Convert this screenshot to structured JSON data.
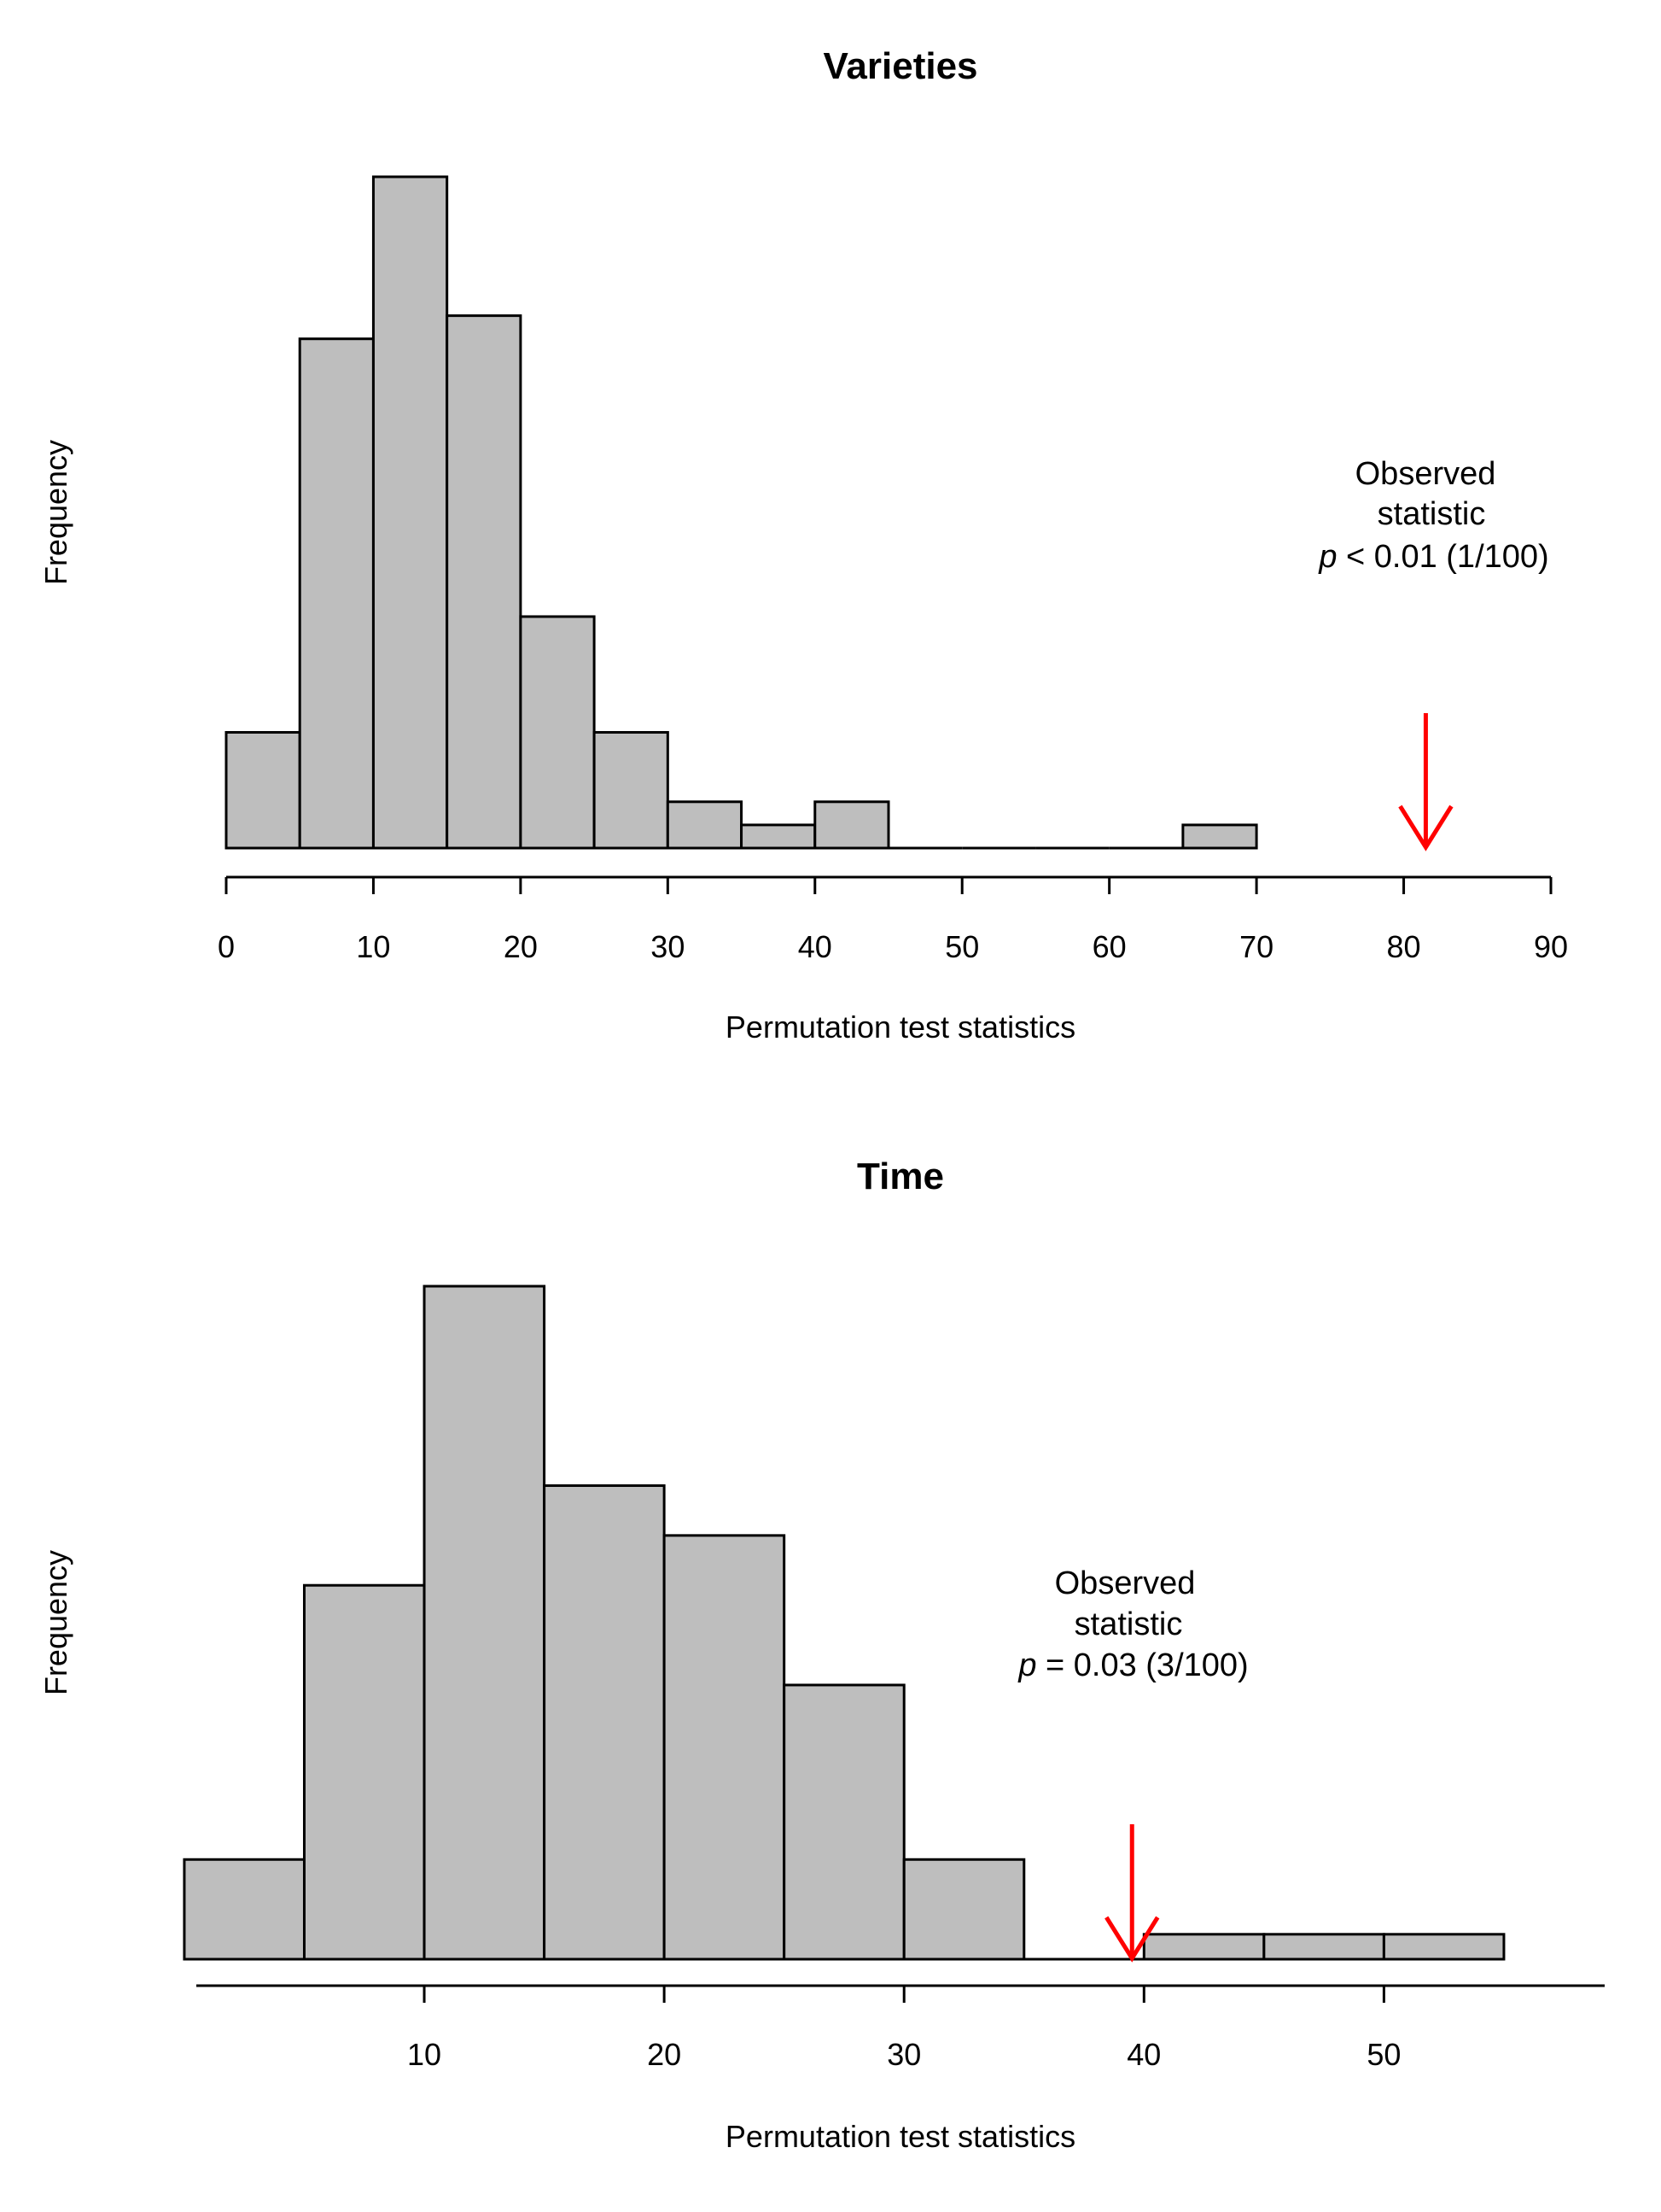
{
  "chart_data": [
    {
      "type": "bar",
      "title": "Varieties",
      "xlabel": "Permutation test statistics",
      "ylabel": "Frequency",
      "bins": [
        {
          "x0": 0,
          "x1": 5,
          "count": 5
        },
        {
          "x0": 5,
          "x1": 10,
          "count": 22
        },
        {
          "x0": 10,
          "x1": 15,
          "count": 29
        },
        {
          "x0": 15,
          "x1": 20,
          "count": 23
        },
        {
          "x0": 20,
          "x1": 25,
          "count": 10
        },
        {
          "x0": 25,
          "x1": 30,
          "count": 5
        },
        {
          "x0": 30,
          "x1": 35,
          "count": 2
        },
        {
          "x0": 35,
          "x1": 40,
          "count": 1
        },
        {
          "x0": 40,
          "x1": 45,
          "count": 2
        },
        {
          "x0": 45,
          "x1": 50,
          "count": 0
        },
        {
          "x0": 50,
          "x1": 55,
          "count": 0
        },
        {
          "x0": 55,
          "x1": 60,
          "count": 0
        },
        {
          "x0": 60,
          "x1": 65,
          "count": 0
        },
        {
          "x0": 65,
          "x1": 70,
          "count": 1
        }
      ],
      "xlim": [
        0,
        90
      ],
      "xticks": [
        "0",
        "10",
        "20",
        "30",
        "40",
        "50",
        "60",
        "70",
        "80",
        "90"
      ],
      "observed_statistic": 81.5,
      "annotation": {
        "line1": "Observed",
        "line2": "statistic",
        "p_symbol": "p",
        "p_text": " < 0.01 (1/100)"
      },
      "colors": {
        "bar_fill": "#bebebe",
        "bar_stroke": "#000000",
        "arrow": "#ff0000"
      }
    },
    {
      "type": "bar",
      "title": "Time",
      "xlabel": "Permutation test statistics",
      "ylabel": "Frequency",
      "bins": [
        {
          "x0": 0,
          "x1": 5,
          "count": 2
        },
        {
          "x0": 5,
          "x1": 10,
          "count": 7.5
        },
        {
          "x0": 10,
          "x1": 15,
          "count": 13.5
        },
        {
          "x0": 15,
          "x1": 20,
          "count": 9.5
        },
        {
          "x0": 20,
          "x1": 25,
          "count": 8.5
        },
        {
          "x0": 25,
          "x1": 30,
          "count": 5.5
        },
        {
          "x0": 30,
          "x1": 35,
          "count": 2
        },
        {
          "x0": 35,
          "x1": 40,
          "count": 0
        },
        {
          "x0": 40,
          "x1": 45,
          "count": 0.5
        },
        {
          "x0": 45,
          "x1": 50,
          "count": 0.5
        },
        {
          "x0": 50,
          "x1": 55,
          "count": 0.5
        }
      ],
      "xlim": [
        0.5,
        59.2
      ],
      "xticks": [
        "10",
        "20",
        "30",
        "40",
        "50"
      ],
      "observed_statistic": 39.5,
      "annotation": {
        "line1": "Observed",
        "line2": "statistic",
        "p_symbol": "p",
        "p_text": " = 0.03 (3/100)"
      },
      "colors": {
        "bar_fill": "#bebebe",
        "bar_stroke": "#000000",
        "arrow": "#ff0000"
      }
    }
  ]
}
